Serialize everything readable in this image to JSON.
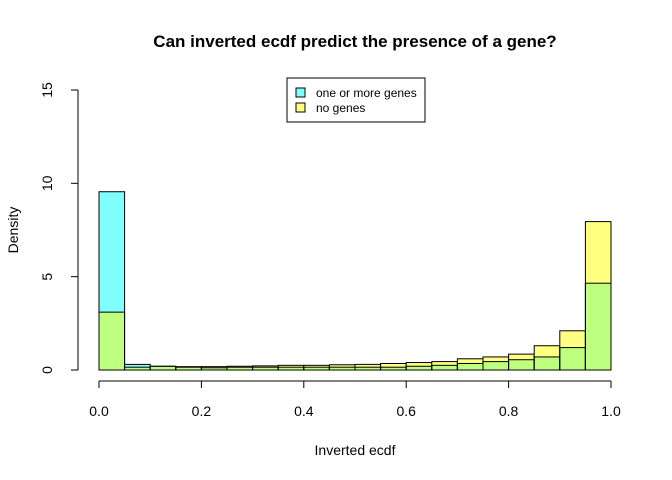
{
  "chart_data": {
    "type": "bar",
    "title": "Can inverted ecdf predict the presence of a gene?",
    "xlabel": "Inverted ecdf",
    "ylabel": "Density",
    "xlim": [
      0,
      1
    ],
    "ylim": [
      0,
      15
    ],
    "xticks": [
      "0.0",
      "0.2",
      "0.4",
      "0.6",
      "0.8",
      "1.0"
    ],
    "yticks": [
      "0",
      "5",
      "10",
      "15"
    ],
    "legend_position": "top-center",
    "bin_edges": [
      0,
      0.05,
      0.1,
      0.15,
      0.2,
      0.25,
      0.3,
      0.35,
      0.4,
      0.45,
      0.5,
      0.55,
      0.6,
      0.65,
      0.7,
      0.75,
      0.8,
      0.85,
      0.9,
      0.95,
      1.0
    ],
    "series": [
      {
        "name": "one or more genes",
        "color": "#80FFFF",
        "values": [
          9.55,
          0.3,
          0.2,
          0.15,
          0.12,
          0.15,
          0.15,
          0.15,
          0.15,
          0.15,
          0.15,
          0.15,
          0.2,
          0.25,
          0.35,
          0.45,
          0.55,
          0.7,
          1.2,
          4.65
        ]
      },
      {
        "name": "no genes",
        "color": "#FFFF80",
        "values": [
          3.1,
          0.15,
          0.2,
          0.18,
          0.18,
          0.2,
          0.22,
          0.25,
          0.25,
          0.28,
          0.3,
          0.35,
          0.4,
          0.45,
          0.6,
          0.7,
          0.85,
          1.3,
          2.1,
          7.95
        ]
      }
    ],
    "overlap_color": "#BFFF80"
  }
}
